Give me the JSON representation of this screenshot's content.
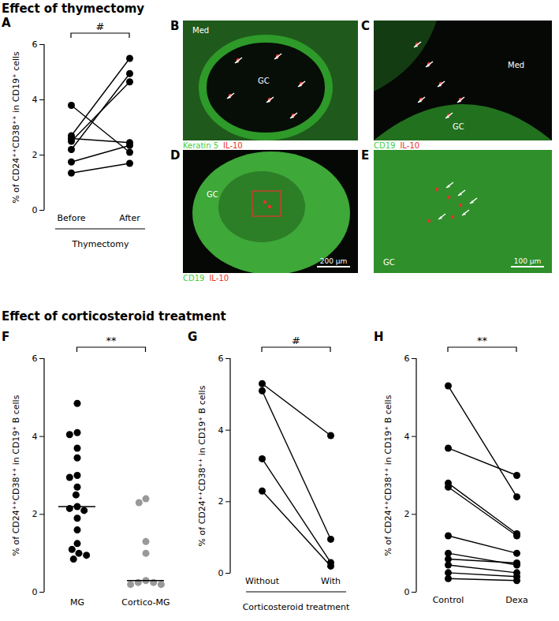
{
  "sections": [
    "Effect of thymectomy",
    "Effect of corticosteroid treatment"
  ],
  "chart_data": [
    {
      "panel": "A",
      "type": "paired_line",
      "y_label": "% of CD24⁺⁺CD38⁺⁺ in CD19⁺ cells",
      "categories": [
        "Before",
        "After"
      ],
      "group_label": "Thymectomy",
      "values": [
        [
          2.7,
          5.5
        ],
        [
          2.2,
          4.95
        ],
        [
          2.5,
          4.65
        ],
        [
          3.8,
          2.1
        ],
        [
          2.6,
          2.45
        ],
        [
          1.75,
          2.35
        ],
        [
          1.35,
          1.7
        ]
      ],
      "color": "#000000",
      "ylim": [
        0,
        6
      ],
      "yticks": [
        0,
        2,
        4,
        6
      ],
      "significance": "#"
    },
    {
      "panel": "F",
      "type": "scatter",
      "y_label": "% of CD24⁺⁺CD38⁺⁺ in CD19⁺ B cells",
      "categories": [
        "MG",
        "Cortico-MG"
      ],
      "values": [
        [
          4.85,
          4.1,
          4.05,
          3.7,
          3.45,
          3.0,
          2.95,
          2.7,
          2.5,
          2.2,
          2.15,
          2.1,
          1.9,
          1.6,
          1.25,
          1.1,
          1.0,
          0.95,
          0.85
        ],
        [
          2.4,
          2.3,
          1.3,
          1.0,
          0.3,
          0.25,
          0.25,
          0.2,
          0.2
        ]
      ],
      "colors": [
        "#000000",
        "#999999"
      ],
      "ylim": [
        0,
        6
      ],
      "yticks": [
        0,
        2,
        4,
        6
      ],
      "significance": "**"
    },
    {
      "panel": "G",
      "type": "paired_line",
      "y_label": "% of CD24⁺⁺CD38⁺⁺ in CD19⁺ B cells",
      "categories": [
        "Without",
        "With"
      ],
      "group_label": "Corticosteroid treatment",
      "values": [
        [
          5.3,
          3.85
        ],
        [
          5.1,
          0.95
        ],
        [
          3.2,
          0.3
        ],
        [
          2.3,
          0.2
        ]
      ],
      "color": "#000000",
      "ylim": [
        0,
        6
      ],
      "yticks": [
        0,
        2,
        4,
        6
      ],
      "significance": "#"
    },
    {
      "panel": "H",
      "type": "paired_line",
      "y_label": "% of CD24⁺⁺CD38⁺⁺ in CD19⁺ B cells",
      "categories": [
        "Control",
        "Dexa"
      ],
      "values": [
        [
          5.3,
          2.45
        ],
        [
          3.7,
          3.0
        ],
        [
          2.8,
          1.5
        ],
        [
          2.7,
          1.45
        ],
        [
          1.45,
          1.0
        ],
        [
          1.0,
          0.7
        ],
        [
          0.85,
          0.75
        ],
        [
          0.7,
          0.5
        ],
        [
          0.5,
          0.4
        ],
        [
          0.35,
          0.3
        ]
      ],
      "color": "#000000",
      "ylim": [
        0,
        6
      ],
      "yticks": [
        0,
        2,
        4,
        6
      ],
      "significance": "**"
    }
  ],
  "images": [
    {
      "panel": "B",
      "labels": [
        "Med",
        "GC"
      ],
      "stains": [
        {
          "name": "Keratin 5",
          "color": "#3fcf3a"
        },
        {
          "name": "IL-10",
          "color": "#e8342c"
        }
      ]
    },
    {
      "panel": "C",
      "labels": [
        "Med",
        "GC"
      ],
      "stains": [
        {
          "name": "CD19",
          "color": "#3fcf3a"
        },
        {
          "name": "IL-10",
          "color": "#e8342c"
        }
      ]
    },
    {
      "panel": "D",
      "labels": [
        "GC"
      ],
      "stains": [
        {
          "name": "CD19",
          "color": "#3fcf3a"
        },
        {
          "name": "IL-10",
          "color": "#e8342c"
        }
      ],
      "scale_bar": "200 µm"
    },
    {
      "panel": "E",
      "labels": [
        "GC"
      ],
      "stains": [],
      "scale_bar": "100 µm"
    }
  ]
}
